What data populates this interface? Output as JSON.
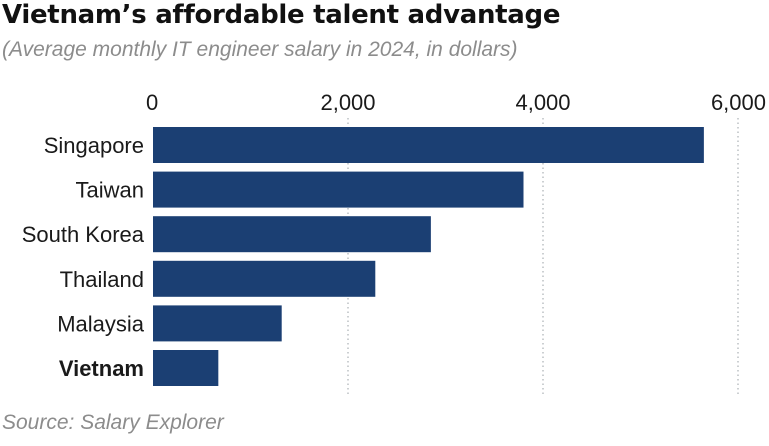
{
  "colors": {
    "bar": "#1b3f73",
    "grid": "#9aa0a6",
    "text": "#1a1a1a",
    "muted": "#8c8c8c"
  },
  "chart_data": {
    "type": "bar",
    "orientation": "horizontal",
    "title": "Vietnam’s affordable talent advantage",
    "subtitle": "(Average monthly IT engineer salary in 2024, in dollars)",
    "source": "Source: Salary Explorer",
    "categories": [
      "Singapore",
      "Taiwan",
      "South Korea",
      "Thailand",
      "Malaysia",
      "Vietnam"
    ],
    "values": [
      5650,
      3800,
      2850,
      2280,
      1320,
      670
    ],
    "highlight": "Vietnam",
    "xlim": [
      0,
      6000
    ],
    "ticks": [
      0,
      2000,
      4000,
      6000
    ],
    "tick_labels": [
      "0",
      "2,000",
      "4,000",
      "6,000"
    ],
    "grid": true,
    "axis_position": "top"
  }
}
